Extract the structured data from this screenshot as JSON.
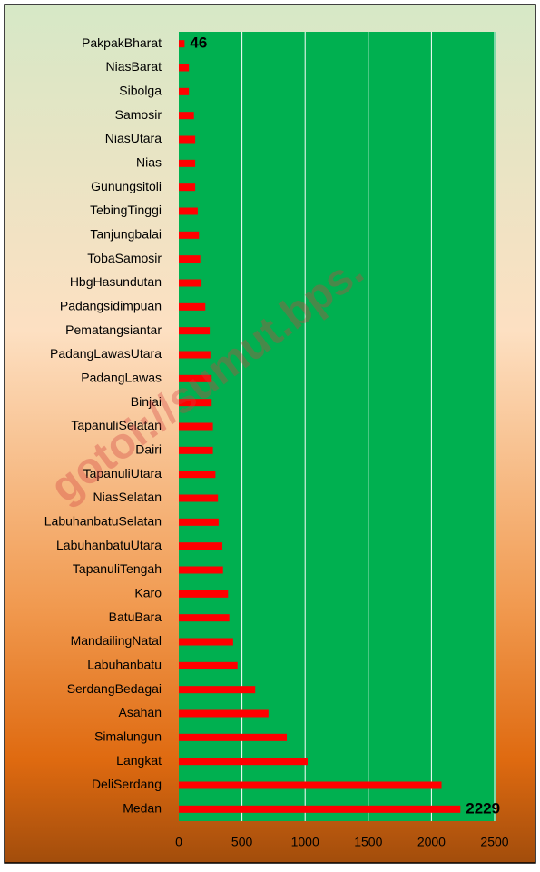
{
  "chart_data": {
    "type": "hbar",
    "annotation": "gotoi://sumut.bps.",
    "categories": [
      "PakpakBharat",
      "NiasBarat",
      "Sibolga",
      "Samosir",
      "NiasUtara",
      "Nias",
      "Gunungsitoli",
      "TebingTinggi",
      "Tanjungbalai",
      "TobaSamosir",
      "HbgHasundutan",
      "Padangsidimpuan",
      "Pematangsiantar",
      "PadangLawasUtara",
      "PadangLawas",
      "Binjai",
      "TapanuliSelatan",
      "Dairi",
      "TapanuliUtara",
      "NiasSelatan",
      "LabuhanbatuSelatan",
      "LabuhanbatuUtara",
      "TapanuliTengah",
      "Karo",
      "BatuBara",
      "MandailingNatal",
      "Labuhanbatu",
      "SerdangBedagai",
      "Asahan",
      "Simalungun",
      "Langkat",
      "DeliSerdang",
      "Medan"
    ],
    "values": [
      46,
      80,
      80,
      120,
      130,
      130,
      130,
      150,
      160,
      170,
      180,
      210,
      245,
      250,
      260,
      260,
      270,
      270,
      290,
      310,
      315,
      345,
      350,
      390,
      400,
      430,
      465,
      605,
      710,
      855,
      1020,
      2080,
      2229
    ],
    "value_labels": [
      "46",
      null,
      null,
      null,
      null,
      null,
      null,
      null,
      null,
      null,
      null,
      null,
      null,
      null,
      null,
      null,
      null,
      null,
      null,
      null,
      null,
      null,
      null,
      null,
      null,
      null,
      null,
      null,
      null,
      null,
      null,
      null,
      "2229"
    ],
    "color": "#ff0000",
    "plot_color": "#00b050",
    "xlim": [
      0,
      2500
    ],
    "xticks": [
      0,
      500,
      1000,
      1500,
      2000,
      2500
    ],
    "grid": true
  }
}
